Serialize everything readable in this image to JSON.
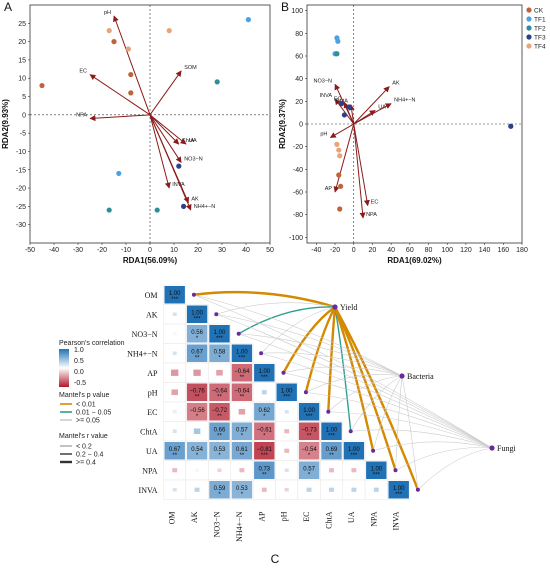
{
  "colors": {
    "arrow": "#8b1a1a",
    "CK": "#c0623a",
    "TF1": "#4aa3e0",
    "TF2": "#2f8f98",
    "TF3": "#2c3f88",
    "TF4": "#e7a57a",
    "curve_p1": "#d48a00",
    "curve_p2": "#2e9e8e",
    "curve_p3": "#cccccc"
  },
  "chart_data": [
    {
      "panel": "A",
      "type": "scatter",
      "xlabel": "RDA1(56.09%)",
      "ylabel": "RDA2(9.93%)",
      "xlim": [
        -50,
        50
      ],
      "ylim": [
        -35,
        30
      ],
      "xticks": [
        -50,
        -40,
        -30,
        -20,
        -10,
        0,
        10,
        20,
        30,
        40,
        50
      ],
      "yticks": [
        -30,
        -25,
        -20,
        -15,
        -10,
        -5,
        0,
        5,
        10,
        15,
        20,
        25
      ],
      "vectors": [
        {
          "label": "pH",
          "x": -15,
          "y": 27
        },
        {
          "label": "SOM",
          "x": 13,
          "y": 12
        },
        {
          "label": "EC",
          "x": -25,
          "y": 11
        },
        {
          "label": "NPA",
          "x": -25,
          "y": -1
        },
        {
          "label": "ChtA",
          "x": 12,
          "y": -8
        },
        {
          "label": "UA",
          "x": 15,
          "y": -8
        },
        {
          "label": "NO3−N",
          "x": 13,
          "y": -13
        },
        {
          "label": "INVA",
          "x": 8,
          "y": -20
        },
        {
          "label": "AK",
          "x": 16,
          "y": -24
        },
        {
          "label": "NH4+−N",
          "x": 17,
          "y": -26
        }
      ],
      "points": [
        {
          "group": "CK",
          "x": -8,
          "y": 11
        },
        {
          "group": "CK",
          "x": -15,
          "y": 20
        },
        {
          "group": "CK",
          "x": -45,
          "y": 8
        },
        {
          "group": "CK",
          "x": -8,
          "y": 6
        },
        {
          "group": "TF1",
          "x": 41,
          "y": 26
        },
        {
          "group": "TF1",
          "x": -13,
          "y": -16
        },
        {
          "group": "TF2",
          "x": 28,
          "y": 9
        },
        {
          "group": "TF2",
          "x": -17,
          "y": -26
        },
        {
          "group": "TF2",
          "x": 3,
          "y": -26
        },
        {
          "group": "TF3",
          "x": 12,
          "y": -14
        },
        {
          "group": "TF3",
          "x": 14,
          "y": -25
        },
        {
          "group": "TF4",
          "x": 8,
          "y": 23
        },
        {
          "group": "TF4",
          "x": -17,
          "y": 23
        },
        {
          "group": "TF4",
          "x": -9,
          "y": 18
        }
      ]
    },
    {
      "panel": "B",
      "type": "scatter",
      "xlabel": "RDA1(69.02%)",
      "ylabel": "RDA2(9.37%)",
      "xlim": [
        -50,
        180
      ],
      "ylim": [
        -105,
        105
      ],
      "xticks": [
        -40,
        -20,
        0,
        20,
        40,
        60,
        80,
        100,
        120,
        140,
        160,
        180
      ],
      "yticks": [
        -100,
        -80,
        -60,
        -40,
        -20,
        0,
        20,
        40,
        60,
        80,
        100
      ],
      "legend": [
        "CK",
        "TF1",
        "TF2",
        "TF3",
        "TF4"
      ],
      "vectors": [
        {
          "label": "NO3−N",
          "x": -20,
          "y": 35
        },
        {
          "label": "AK",
          "x": 38,
          "y": 33
        },
        {
          "label": "INVA",
          "x": -20,
          "y": 22
        },
        {
          "label": "ChtA",
          "x": -3,
          "y": 17
        },
        {
          "label": "EC",
          "x": -10,
          "y": 19
        },
        {
          "label": "NH4+−N",
          "x": 40,
          "y": 18
        },
        {
          "label": "UA",
          "x": 23,
          "y": 12
        },
        {
          "label": "pH",
          "x": -25,
          "y": -12
        },
        {
          "label": "AP",
          "x": -20,
          "y": -60
        },
        {
          "label": "EC",
          "x": 15,
          "y": -72
        },
        {
          "label": "NPA",
          "x": 10,
          "y": -83
        }
      ],
      "points": [
        {
          "group": "TF1",
          "x": -18,
          "y": 76
        },
        {
          "group": "TF1",
          "x": -17,
          "y": 73
        },
        {
          "group": "TF1",
          "x": -20,
          "y": 62
        },
        {
          "group": "TF2",
          "x": -18,
          "y": 62
        },
        {
          "group": "CK",
          "x": -16,
          "y": -45
        },
        {
          "group": "CK",
          "x": -14,
          "y": -55
        },
        {
          "group": "CK",
          "x": -15,
          "y": -75
        },
        {
          "group": "TF4",
          "x": -18,
          "y": -18
        },
        {
          "group": "TF4",
          "x": -16,
          "y": -23
        },
        {
          "group": "TF4",
          "x": -15,
          "y": -28
        },
        {
          "group": "TF3",
          "x": -10,
          "y": 8
        },
        {
          "group": "TF3",
          "x": -13,
          "y": 18
        },
        {
          "group": "TF3",
          "x": -5,
          "y": 15
        },
        {
          "group": "TF3",
          "x": 168,
          "y": -2
        }
      ]
    },
    {
      "panel": "C",
      "type": "heatmap",
      "variables": [
        "OM",
        "AK",
        "NO3−N",
        "NH4+−N",
        "AP",
        "pH",
        "EC",
        "ChtA",
        "UA",
        "NPA",
        "INVA"
      ],
      "matrix": [
        [
          1
        ],
        [
          0.2,
          1
        ],
        [
          0.05,
          0.56,
          1
        ],
        [
          0.2,
          0.67,
          0.58,
          1
        ],
        [
          -0.45,
          -0.45,
          -0.4,
          -0.64,
          1
        ],
        [
          -0.4,
          -0.76,
          -0.64,
          -0.64,
          0.3,
          1
        ],
        [
          0.1,
          -0.56,
          -0.72,
          -0.4,
          0.62,
          0.2,
          1
        ],
        [
          0.2,
          0.4,
          0.66,
          0.57,
          -0.61,
          -0.3,
          -0.73,
          1
        ],
        [
          0.67,
          0.54,
          0.53,
          0.61,
          -0.81,
          -0.3,
          -0.54,
          0.69,
          1
        ],
        [
          -0.3,
          0.05,
          -0.2,
          -0.3,
          0.73,
          0.2,
          0.57,
          -0.3,
          -0.3,
          1
        ],
        [
          0.2,
          0.3,
          0.59,
          0.53,
          -0.3,
          -0.2,
          0.3,
          0.3,
          0.3,
          0.3,
          1
        ]
      ],
      "labels": [
        [
          {
            "v": "1.00",
            "s": "***"
          }
        ],
        [
          null,
          {
            "v": "1.00",
            "s": "***"
          }
        ],
        [
          null,
          {
            "v": "0.56",
            "s": "*"
          },
          {
            "v": "1.00",
            "s": "***"
          }
        ],
        [
          null,
          {
            "v": "0.67",
            "s": "**"
          },
          {
            "v": "0.58",
            "s": "*"
          },
          {
            "v": "1.00",
            "s": "***"
          }
        ],
        [
          null,
          null,
          null,
          {
            "v": "−0.64",
            "s": "**"
          },
          {
            "v": "1.00",
            "s": "***"
          }
        ],
        [
          null,
          {
            "v": "−0.76",
            "s": "**"
          },
          {
            "v": "−0.64",
            "s": "**"
          },
          {
            "v": "−0.64",
            "s": "**"
          },
          null,
          {
            "v": "1.00",
            "s": "***"
          }
        ],
        [
          null,
          {
            "v": "−0.56",
            "s": "*"
          },
          {
            "v": "−0.72",
            "s": "**"
          },
          null,
          {
            "v": "0.62",
            "s": "*"
          },
          null,
          {
            "v": "1.00",
            "s": "***"
          }
        ],
        [
          null,
          null,
          {
            "v": "0.66",
            "s": "**"
          },
          {
            "v": "0.57",
            "s": "*"
          },
          {
            "v": "−0.61",
            "s": "*"
          },
          null,
          {
            "v": "−0.73",
            "s": "**"
          },
          {
            "v": "1.00",
            "s": "***"
          }
        ],
        [
          {
            "v": "0.67",
            "s": "**"
          },
          {
            "v": "0.54",
            "s": "*"
          },
          {
            "v": "0.53",
            "s": "*"
          },
          {
            "v": "0.61",
            "s": "**"
          },
          {
            "v": "−0.81",
            "s": "***"
          },
          null,
          {
            "v": "−0.54",
            "s": "*"
          },
          {
            "v": "0.69",
            "s": "**"
          },
          {
            "v": "1.00",
            "s": "***"
          }
        ],
        [
          null,
          null,
          null,
          null,
          {
            "v": "0.73",
            "s": "**"
          },
          null,
          {
            "v": "0.57",
            "s": "*"
          },
          null,
          null,
          {
            "v": "1.00",
            "s": "***"
          }
        ],
        [
          null,
          null,
          {
            "v": "0.59",
            "s": "*"
          },
          {
            "v": "0.53",
            "s": "*"
          },
          null,
          null,
          null,
          null,
          null,
          null,
          {
            "v": "1.00",
            "s": "***"
          }
        ]
      ],
      "mantel_targets": [
        "Yield",
        "Bacteria",
        "Fungi"
      ],
      "mantel_links": [
        {
          "from": "Yield",
          "to": "OM",
          "p": "p1",
          "r": "r3"
        },
        {
          "from": "Yield",
          "to": "AK",
          "p": "p3",
          "r": "r1"
        },
        {
          "from": "Yield",
          "to": "NO3−N",
          "p": "p2",
          "r": "r2"
        },
        {
          "from": "Yield",
          "to": "NH4+−N",
          "p": "p3",
          "r": "r1"
        },
        {
          "from": "Yield",
          "to": "AP",
          "p": "p1",
          "r": "r3"
        },
        {
          "from": "Yield",
          "to": "pH",
          "p": "p1",
          "r": "r3"
        },
        {
          "from": "Yield",
          "to": "EC",
          "p": "p1",
          "r": "r3"
        },
        {
          "from": "Yield",
          "to": "ChtA",
          "p": "p2",
          "r": "r2"
        },
        {
          "from": "Yield",
          "to": "UA",
          "p": "p1",
          "r": "r3"
        },
        {
          "from": "Yield",
          "to": "NPA",
          "p": "p1",
          "r": "r3"
        },
        {
          "from": "Yield",
          "to": "INVA",
          "p": "p1",
          "r": "r3"
        },
        {
          "from": "Bacteria",
          "to": "OM",
          "p": "p3",
          "r": "r1"
        },
        {
          "from": "Bacteria",
          "to": "AK",
          "p": "p3",
          "r": "r1"
        },
        {
          "from": "Bacteria",
          "to": "NO3−N",
          "p": "p3",
          "r": "r1"
        },
        {
          "from": "Bacteria",
          "to": "NH4+−N",
          "p": "p3",
          "r": "r1"
        },
        {
          "from": "Bacteria",
          "to": "AP",
          "p": "p3",
          "r": "r1"
        },
        {
          "from": "Bacteria",
          "to": "pH",
          "p": "p3",
          "r": "r1"
        },
        {
          "from": "Bacteria",
          "to": "EC",
          "p": "p3",
          "r": "r1"
        },
        {
          "from": "Bacteria",
          "to": "ChtA",
          "p": "p3",
          "r": "r1"
        },
        {
          "from": "Bacteria",
          "to": "UA",
          "p": "p3",
          "r": "r1"
        },
        {
          "from": "Bacteria",
          "to": "NPA",
          "p": "p3",
          "r": "r1"
        },
        {
          "from": "Bacteria",
          "to": "INVA",
          "p": "p3",
          "r": "r1"
        },
        {
          "from": "Fungi",
          "to": "OM",
          "p": "p3",
          "r": "r1"
        },
        {
          "from": "Fungi",
          "to": "AK",
          "p": "p3",
          "r": "r1"
        },
        {
          "from": "Fungi",
          "to": "NO3−N",
          "p": "p3",
          "r": "r1"
        },
        {
          "from": "Fungi",
          "to": "NH4+−N",
          "p": "p3",
          "r": "r1"
        },
        {
          "from": "Fungi",
          "to": "AP",
          "p": "p3",
          "r": "r1"
        },
        {
          "from": "Fungi",
          "to": "pH",
          "p": "p3",
          "r": "r1"
        },
        {
          "from": "Fungi",
          "to": "EC",
          "p": "p3",
          "r": "r1"
        },
        {
          "from": "Fungi",
          "to": "ChtA",
          "p": "p3",
          "r": "r1"
        },
        {
          "from": "Fungi",
          "to": "UA",
          "p": "p3",
          "r": "r1"
        },
        {
          "from": "Fungi",
          "to": "NPA",
          "p": "p3",
          "r": "r1"
        },
        {
          "from": "Fungi",
          "to": "INVA",
          "p": "p3",
          "r": "r1"
        }
      ]
    }
  ],
  "legend_c": {
    "corr_title": "Pearson's correlation",
    "corr_ticks": [
      "1.0",
      "0.5",
      "0.0",
      "-0.5"
    ],
    "p_title": "Mantel's p value",
    "p_items": [
      "< 0.01",
      "0.01 − 0.05",
      ">= 0.05"
    ],
    "r_title": "Mantel's r value",
    "r_items": [
      "< 0.2",
      "0.2 − 0.4",
      ">= 0.4"
    ]
  }
}
